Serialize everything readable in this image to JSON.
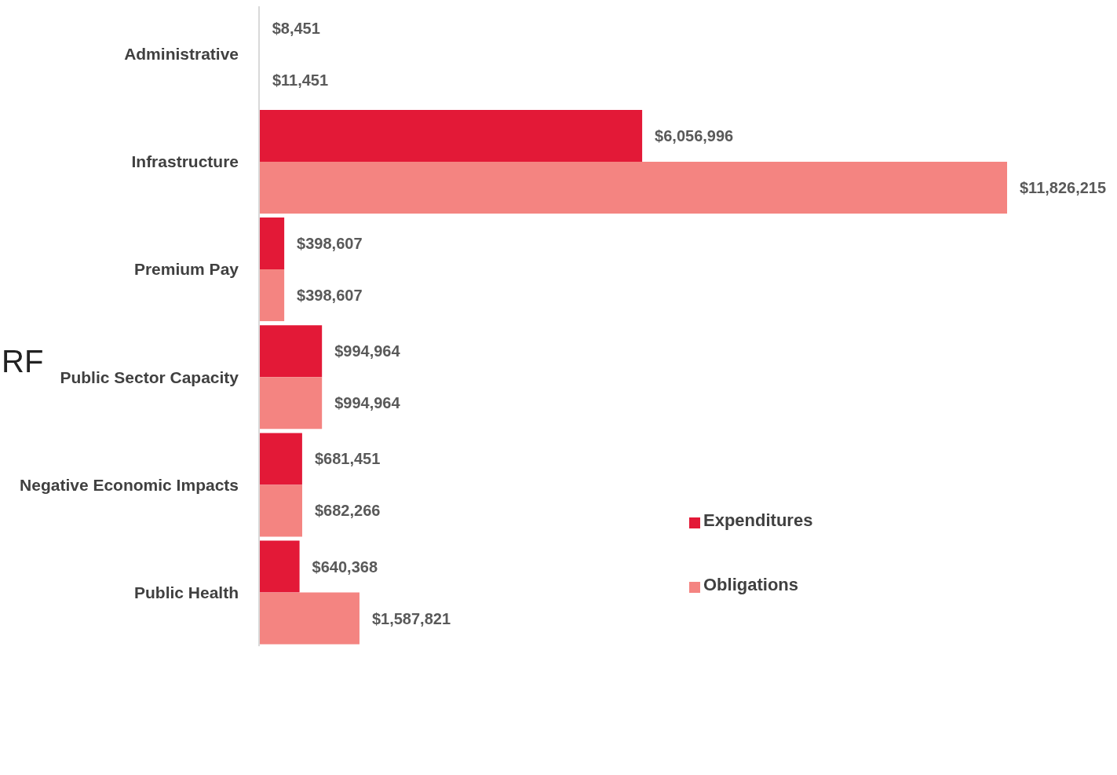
{
  "chart_data": {
    "type": "bar",
    "orientation": "horizontal",
    "categories": [
      "Administrative",
      "Infrastructure",
      "Premium Pay",
      "Public Sector Capacity",
      "Negative Economic Impacts",
      "Public Health"
    ],
    "series": [
      {
        "name": "Expenditures",
        "color": "#e31937",
        "values": [
          8451,
          6056996,
          398607,
          994964,
          681451,
          640368
        ],
        "value_labels": [
          "$8,451",
          "$6,056,996",
          "$398,607",
          "$994,964",
          "$681,451",
          "$640,368"
        ]
      },
      {
        "name": "Obligations",
        "color": "#f48481",
        "values": [
          11451,
          11826215,
          398607,
          994964,
          682266,
          1587821
        ],
        "value_labels": [
          "$11,451",
          "$11,826,215",
          "$398,607",
          "$994,964",
          "$682,266",
          "$1,587,821"
        ]
      }
    ],
    "legend": "right",
    "annotations": [
      "RF"
    ]
  }
}
